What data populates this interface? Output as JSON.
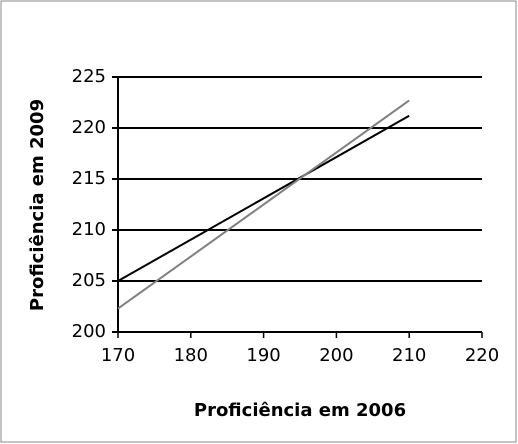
{
  "chart_data": {
    "type": "line",
    "xlabel": "Proficiência em 2006",
    "ylabel": "Proficiência em 2009",
    "x": [
      170,
      210
    ],
    "series": [
      {
        "color": "#000000",
        "values": [
          205,
          221.2
        ]
      },
      {
        "color": "#808080",
        "values": [
          202.3,
          222.7
        ]
      }
    ],
    "xlim": [
      170,
      220
    ],
    "xticks": [
      170,
      180,
      190,
      200,
      210,
      220
    ],
    "ylim": [
      200,
      225
    ],
    "yticks": [
      200,
      205,
      210,
      215,
      220,
      225
    ],
    "grid": true
  }
}
